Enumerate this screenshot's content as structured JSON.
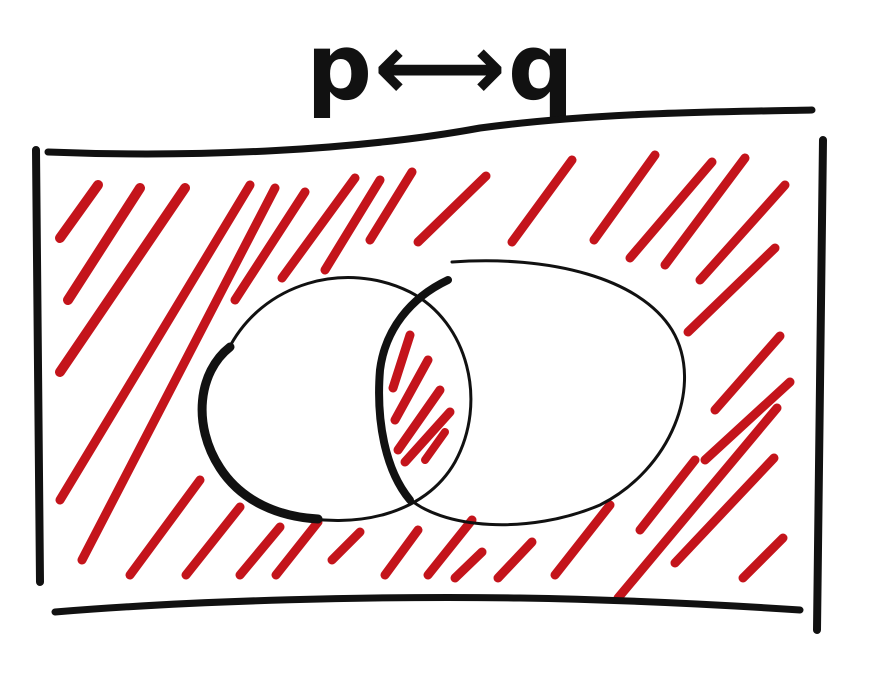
{
  "title": "p⟷q",
  "colors": {
    "ink": "#111111",
    "shade": "#c4141b",
    "background": "#ffffff"
  },
  "diagram": {
    "type": "venn",
    "sets": 2,
    "shaded_regions": [
      "intersection",
      "outside-both"
    ]
  }
}
